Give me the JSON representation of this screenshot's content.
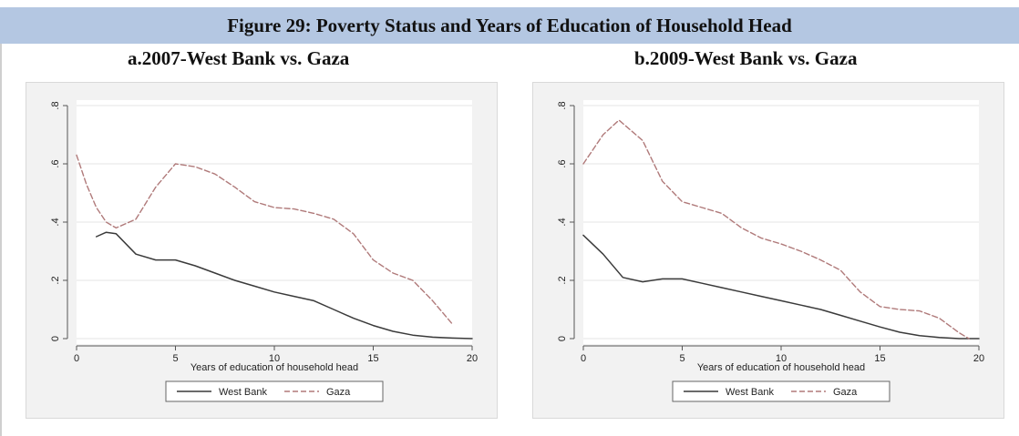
{
  "figure": {
    "title": "Figure 29: Poverty Status and Years of Education of Household Head",
    "colors": {
      "header_bg": "#b4c7e2",
      "west_bank": "#3a3a3a",
      "gaza": "#b07a7a",
      "panel_bg": "#f2f2f2"
    }
  },
  "chart_data": [
    {
      "type": "line",
      "title": "a.2007-West Bank vs. Gaza",
      "xlabel": "Years of education of household head",
      "ylabel": "",
      "xlim": [
        0,
        20
      ],
      "ylim": [
        0,
        0.8
      ],
      "xticks": [
        0,
        5,
        10,
        15,
        20
      ],
      "yticks": [
        0,
        0.2,
        0.4,
        0.6,
        0.8
      ],
      "ytick_labels": [
        "0",
        ".2",
        ".4",
        ".6",
        ".8"
      ],
      "grid": "horizontal",
      "legend": "bottom",
      "series": [
        {
          "name": "West Bank",
          "style": "solid",
          "x": [
            1,
            1.5,
            2,
            3,
            4,
            5,
            6,
            7,
            8,
            9,
            10,
            11,
            12,
            13,
            14,
            15,
            16,
            17,
            18,
            19,
            20
          ],
          "y": [
            0.35,
            0.365,
            0.36,
            0.29,
            0.27,
            0.27,
            0.25,
            0.225,
            0.2,
            0.18,
            0.16,
            0.145,
            0.13,
            0.1,
            0.07,
            0.045,
            0.025,
            0.012,
            0.005,
            0.002,
            0.0
          ]
        },
        {
          "name": "Gaza",
          "style": "dashed",
          "x": [
            0,
            0.5,
            1,
            1.5,
            2,
            3,
            4,
            5,
            6,
            7,
            8,
            9,
            10,
            11,
            12,
            13,
            14,
            15,
            16,
            17,
            18,
            19
          ],
          "y": [
            0.63,
            0.53,
            0.45,
            0.4,
            0.38,
            0.41,
            0.52,
            0.6,
            0.59,
            0.565,
            0.52,
            0.47,
            0.45,
            0.445,
            0.43,
            0.41,
            0.36,
            0.27,
            0.225,
            0.2,
            0.13,
            0.05
          ]
        }
      ]
    },
    {
      "type": "line",
      "title": "b.2009-West Bank vs. Gaza",
      "xlabel": "Years of education of household head",
      "ylabel": "",
      "xlim": [
        0,
        20
      ],
      "ylim": [
        0,
        0.8
      ],
      "xticks": [
        0,
        5,
        10,
        15,
        20
      ],
      "yticks": [
        0,
        0.2,
        0.4,
        0.6,
        0.8
      ],
      "ytick_labels": [
        "0",
        ".2",
        ".4",
        ".6",
        ".8"
      ],
      "grid": "horizontal",
      "legend": "bottom",
      "series": [
        {
          "name": "West Bank",
          "style": "solid",
          "x": [
            0,
            1,
            2,
            3,
            4,
            5,
            6,
            7,
            8,
            9,
            10,
            11,
            12,
            13,
            14,
            15,
            16,
            17,
            18,
            19,
            20
          ],
          "y": [
            0.355,
            0.29,
            0.21,
            0.195,
            0.205,
            0.205,
            0.19,
            0.175,
            0.16,
            0.145,
            0.13,
            0.115,
            0.1,
            0.08,
            0.06,
            0.04,
            0.022,
            0.01,
            0.004,
            0.0,
            0.0
          ]
        },
        {
          "name": "Gaza",
          "style": "dashed",
          "x": [
            0,
            1,
            1.8,
            3,
            4,
            5,
            6,
            7,
            8,
            9,
            10,
            11,
            12,
            13,
            14,
            15,
            16,
            17,
            18,
            19,
            19.5
          ],
          "y": [
            0.6,
            0.7,
            0.75,
            0.68,
            0.54,
            0.47,
            0.45,
            0.43,
            0.38,
            0.345,
            0.325,
            0.3,
            0.27,
            0.235,
            0.16,
            0.11,
            0.1,
            0.095,
            0.07,
            0.02,
            0.0
          ]
        }
      ]
    }
  ]
}
